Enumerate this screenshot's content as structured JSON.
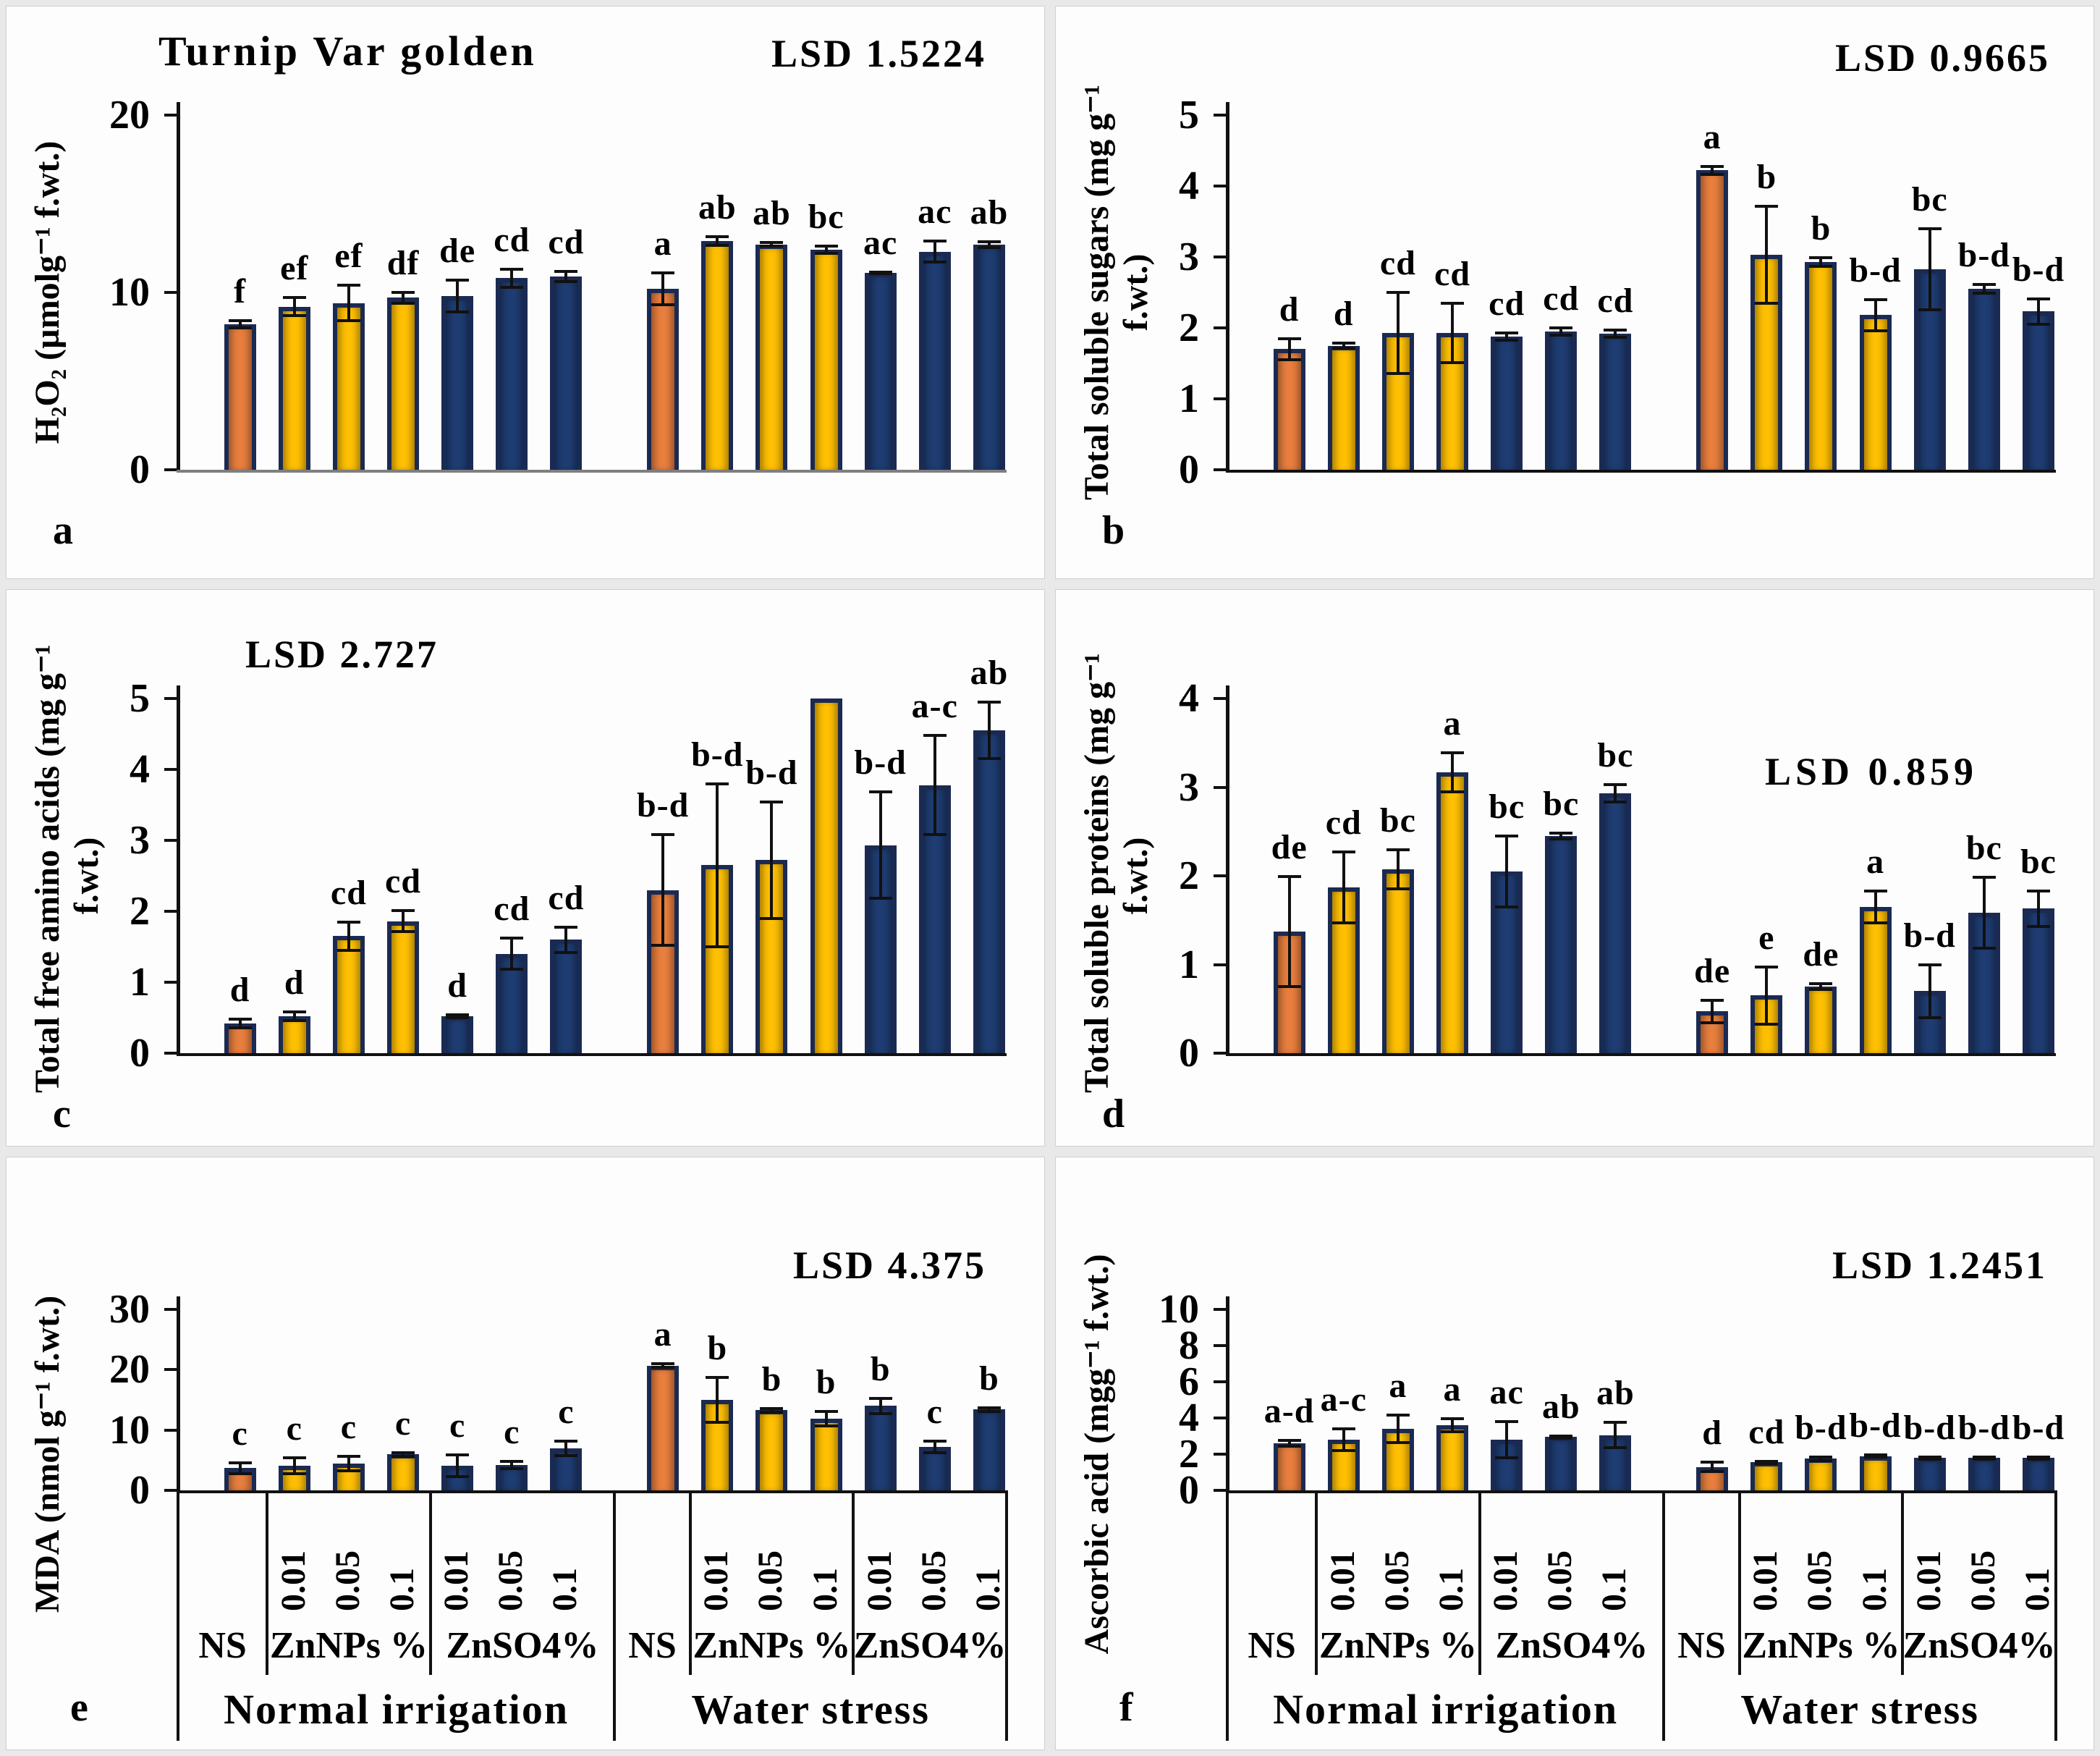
{
  "figure": {
    "title": "Turnip Var golden",
    "conditions": [
      "Normal irrigation",
      "Water stress"
    ],
    "treatment_groups": [
      "NS",
      "ZnNPs %",
      "ZnSO4%"
    ]
  },
  "colors": {
    "ns_bar": "#E87F3E",
    "znnps_bar": "#FFC003",
    "znso4_bar": "#1F3D73",
    "bar_border": "#1B2A52",
    "axis": "#111111",
    "panel_a_baseline": "#7f7f7f"
  },
  "bar_color_pattern": [
    "ns",
    "znnps",
    "znnps",
    "znnps",
    "znso4",
    "znso4",
    "znso4",
    "ns",
    "znnps",
    "znnps",
    "znnps",
    "znso4",
    "znso4",
    "znso4"
  ],
  "x_axis": {
    "bar_tick_labels": [
      "",
      "0.01",
      "0.05",
      "0.1",
      "0.01",
      "0.05",
      "0.1",
      "",
      "0.01",
      "0.05",
      "0.1",
      "0.01",
      "0.05",
      "0.1"
    ],
    "group_labels": [
      "NS",
      "ZnNPs %",
      "ZnSO4%",
      "NS",
      "ZnNPs %",
      "ZnSO4%"
    ],
    "condition_labels": [
      "Normal irrigation",
      "Water stress"
    ]
  },
  "chart_data": [
    {
      "type": "bar",
      "letter": "a",
      "title": "Turnip Var golden",
      "lsd": "LSD 1.5224",
      "ylabel_lines": [
        "H₂O₂ (µmolg⁻¹ f.wt.)"
      ],
      "ylim": [
        0,
        20
      ],
      "yticks": [
        0,
        10,
        20
      ],
      "categories": [
        "Normal-NS",
        "Normal-ZnNPs-0.01",
        "Normal-ZnNPs-0.05",
        "Normal-ZnNPs-0.1",
        "Normal-ZnSO4-0.01",
        "Normal-ZnSO4-0.05",
        "Normal-ZnSO4-0.1",
        "Stress-NS",
        "Stress-ZnNPs-0.01",
        "Stress-ZnNPs-0.05",
        "Stress-ZnNPs-0.1",
        "Stress-ZnSO4-0.01",
        "Stress-ZnSO4-0.05",
        "Stress-ZnSO4-0.1"
      ],
      "values": [
        8.2,
        9.2,
        9.4,
        9.7,
        9.8,
        10.8,
        10.9,
        10.2,
        12.9,
        12.7,
        12.4,
        11.1,
        12.3,
        12.7
      ],
      "errors": [
        0.2,
        0.5,
        1.0,
        0.3,
        0.9,
        0.5,
        0.3,
        0.9,
        0.25,
        0.1,
        0.2,
        0.05,
        0.6,
        0.15
      ],
      "sig_letters": [
        "f",
        "ef",
        "ef",
        "df",
        "de",
        "cd",
        "cd",
        "a",
        "ab",
        "ab",
        "bc",
        "ac",
        "ac",
        "ab"
      ]
    },
    {
      "type": "bar",
      "letter": "b",
      "lsd": "LSD 0.9665",
      "ylabel_lines": [
        "Total soluble sugars (mg g⁻¹",
        "f.wt.)"
      ],
      "ylim": [
        0,
        5
      ],
      "yticks": [
        0,
        1,
        2,
        3,
        4,
        5
      ],
      "categories": [
        "Normal-NS",
        "Normal-ZnNPs-0.01",
        "Normal-ZnNPs-0.05",
        "Normal-ZnNPs-0.1",
        "Normal-ZnSO4-0.01",
        "Normal-ZnSO4-0.05",
        "Normal-ZnSO4-0.1",
        "Stress-NS",
        "Stress-ZnNPs-0.01",
        "Stress-ZnNPs-0.05",
        "Stress-ZnNPs-0.1",
        "Stress-ZnSO4-0.01",
        "Stress-ZnSO4-0.05",
        "Stress-ZnSO4-0.1"
      ],
      "values": [
        1.7,
        1.75,
        1.93,
        1.93,
        1.88,
        1.95,
        1.92,
        4.22,
        3.03,
        2.93,
        2.18,
        2.83,
        2.55,
        2.23
      ],
      "errors": [
        0.15,
        0.04,
        0.57,
        0.42,
        0.05,
        0.05,
        0.05,
        0.06,
        0.68,
        0.06,
        0.22,
        0.57,
        0.06,
        0.18
      ],
      "sig_letters": [
        "d",
        "d",
        "cd",
        "cd",
        "cd",
        "cd",
        "cd",
        "a",
        "b",
        "b",
        "b-d",
        "bc",
        "b-d",
        "b-d"
      ]
    },
    {
      "type": "bar",
      "letter": "c",
      "lsd": "LSD 2.727",
      "ylabel_lines": [
        "Total free amino acids (mg g⁻¹",
        "f.wt.)"
      ],
      "ylim": [
        0,
        5
      ],
      "yticks": [
        0,
        1,
        2,
        3,
        4,
        5
      ],
      "categories": [
        "Normal-NS",
        "Normal-ZnNPs-0.01",
        "Normal-ZnNPs-0.05",
        "Normal-ZnNPs-0.1",
        "Normal-ZnSO4-0.01",
        "Normal-ZnSO4-0.05",
        "Normal-ZnSO4-0.1",
        "Stress-NS",
        "Stress-ZnNPs-0.01",
        "Stress-ZnNPs-0.05",
        "Stress-ZnNPs-0.1",
        "Stress-ZnSO4-0.01",
        "Stress-ZnSO4-0.05",
        "Stress-ZnSO4-0.1"
      ],
      "values": [
        0.42,
        0.52,
        1.65,
        1.86,
        0.52,
        1.4,
        1.6,
        2.3,
        2.65,
        2.72,
        5.0,
        2.93,
        3.78,
        4.55
      ],
      "errors": [
        0.06,
        0.06,
        0.2,
        0.15,
        0.02,
        0.22,
        0.18,
        0.78,
        1.15,
        0.82,
        0,
        0.75,
        0.7,
        0.4
      ],
      "sig_letters": [
        "d",
        "d",
        "cd",
        "cd",
        "d",
        "cd",
        "cd",
        "b-d",
        "b-d",
        "b-d",
        "",
        "b-d",
        "a-c",
        "ab"
      ]
    },
    {
      "type": "bar",
      "letter": "d",
      "lsd": "LSD 0.859",
      "ylabel_lines": [
        "Total soluble proteins (mg g⁻¹",
        "f.wt.)"
      ],
      "ylim": [
        0,
        4
      ],
      "yticks": [
        0,
        1,
        2,
        3,
        4
      ],
      "categories": [
        "Normal-NS",
        "Normal-ZnNPs-0.01",
        "Normal-ZnNPs-0.05",
        "Normal-ZnNPs-0.1",
        "Normal-ZnSO4-0.01",
        "Normal-ZnSO4-0.05",
        "Normal-ZnSO4-0.1",
        "Stress-NS",
        "Stress-ZnNPs-0.01",
        "Stress-ZnNPs-0.05",
        "Stress-ZnNPs-0.1",
        "Stress-ZnSO4-0.01",
        "Stress-ZnSO4-0.05",
        "Stress-ZnSO4-0.1"
      ],
      "values": [
        1.37,
        1.87,
        2.07,
        3.17,
        2.05,
        2.45,
        2.93,
        0.47,
        0.65,
        0.75,
        1.65,
        0.7,
        1.58,
        1.63
      ],
      "errors": [
        0.62,
        0.4,
        0.22,
        0.22,
        0.4,
        0.03,
        0.1,
        0.13,
        0.32,
        0.03,
        0.18,
        0.3,
        0.4,
        0.2
      ],
      "sig_letters": [
        "de",
        "cd",
        "bc",
        "a",
        "bc",
        "bc",
        "bc",
        "de",
        "e",
        "de",
        "a",
        "b-d",
        "bc",
        "bc"
      ]
    },
    {
      "type": "bar",
      "letter": "e",
      "lsd": "LSD 4.375",
      "ylabel_lines": [
        "MDA  (nmol g⁻¹ f.wt.)"
      ],
      "ylim": [
        0,
        30
      ],
      "yticks": [
        0,
        10,
        20,
        30
      ],
      "categories": [
        "Normal-NS",
        "Normal-ZnNPs-0.01",
        "Normal-ZnNPs-0.05",
        "Normal-ZnNPs-0.1",
        "Normal-ZnSO4-0.01",
        "Normal-ZnSO4-0.05",
        "Normal-ZnSO4-0.1",
        "Stress-NS",
        "Stress-ZnNPs-0.01",
        "Stress-ZnNPs-0.05",
        "Stress-ZnNPs-0.1",
        "Stress-ZnSO4-0.01",
        "Stress-ZnSO4-0.05",
        "Stress-ZnSO4-0.1"
      ],
      "values": [
        3.7,
        4.1,
        4.5,
        6.0,
        4.1,
        4.2,
        7.0,
        20.7,
        15.0,
        13.3,
        11.9,
        14.0,
        7.2,
        13.4
      ],
      "errors": [
        0.9,
        1.3,
        1.2,
        0.3,
        1.8,
        0.6,
        1.2,
        0.3,
        3.7,
        0.3,
        1.2,
        1.3,
        1.0,
        0.3
      ],
      "sig_letters": [
        "c",
        "c",
        "c",
        "c",
        "c",
        "c",
        "c",
        "a",
        "b",
        "b",
        "b",
        "b",
        "c",
        "b"
      ]
    },
    {
      "type": "bar",
      "letter": "f",
      "lsd": "LSD 1.2451",
      "ylabel_lines": [
        "Ascorbic acid (mgg⁻¹ f.wt.)"
      ],
      "ylim": [
        0,
        10
      ],
      "yticks": [
        0,
        2,
        4,
        6,
        8,
        10
      ],
      "categories": [
        "Normal-NS",
        "Normal-ZnNPs-0.01",
        "Normal-ZnNPs-0.05",
        "Normal-ZnNPs-0.1",
        "Normal-ZnSO4-0.01",
        "Normal-ZnSO4-0.05",
        "Normal-ZnSO4-0.1",
        "Stress-NS",
        "Stress-ZnNPs-0.01",
        "Stress-ZnNPs-0.05",
        "Stress-ZnNPs-0.1",
        "Stress-ZnSO4-0.01",
        "Stress-ZnSO4-0.05",
        "Stress-ZnSO4-0.1"
      ],
      "values": [
        2.6,
        2.8,
        3.4,
        3.6,
        2.8,
        2.95,
        3.05,
        1.3,
        1.55,
        1.75,
        1.9,
        1.8,
        1.8,
        1.8
      ],
      "errors": [
        0.15,
        0.6,
        0.75,
        0.35,
        1.0,
        0.05,
        0.7,
        0.25,
        0.06,
        0.1,
        0.06,
        0.06,
        0.06,
        0.06
      ],
      "sig_letters": [
        "a-d",
        "a-c",
        "a",
        "a",
        "ac",
        "ab",
        "ab",
        "d",
        "cd",
        "b-d",
        "b-d",
        "b-d",
        "b-d",
        "b-d"
      ]
    }
  ]
}
